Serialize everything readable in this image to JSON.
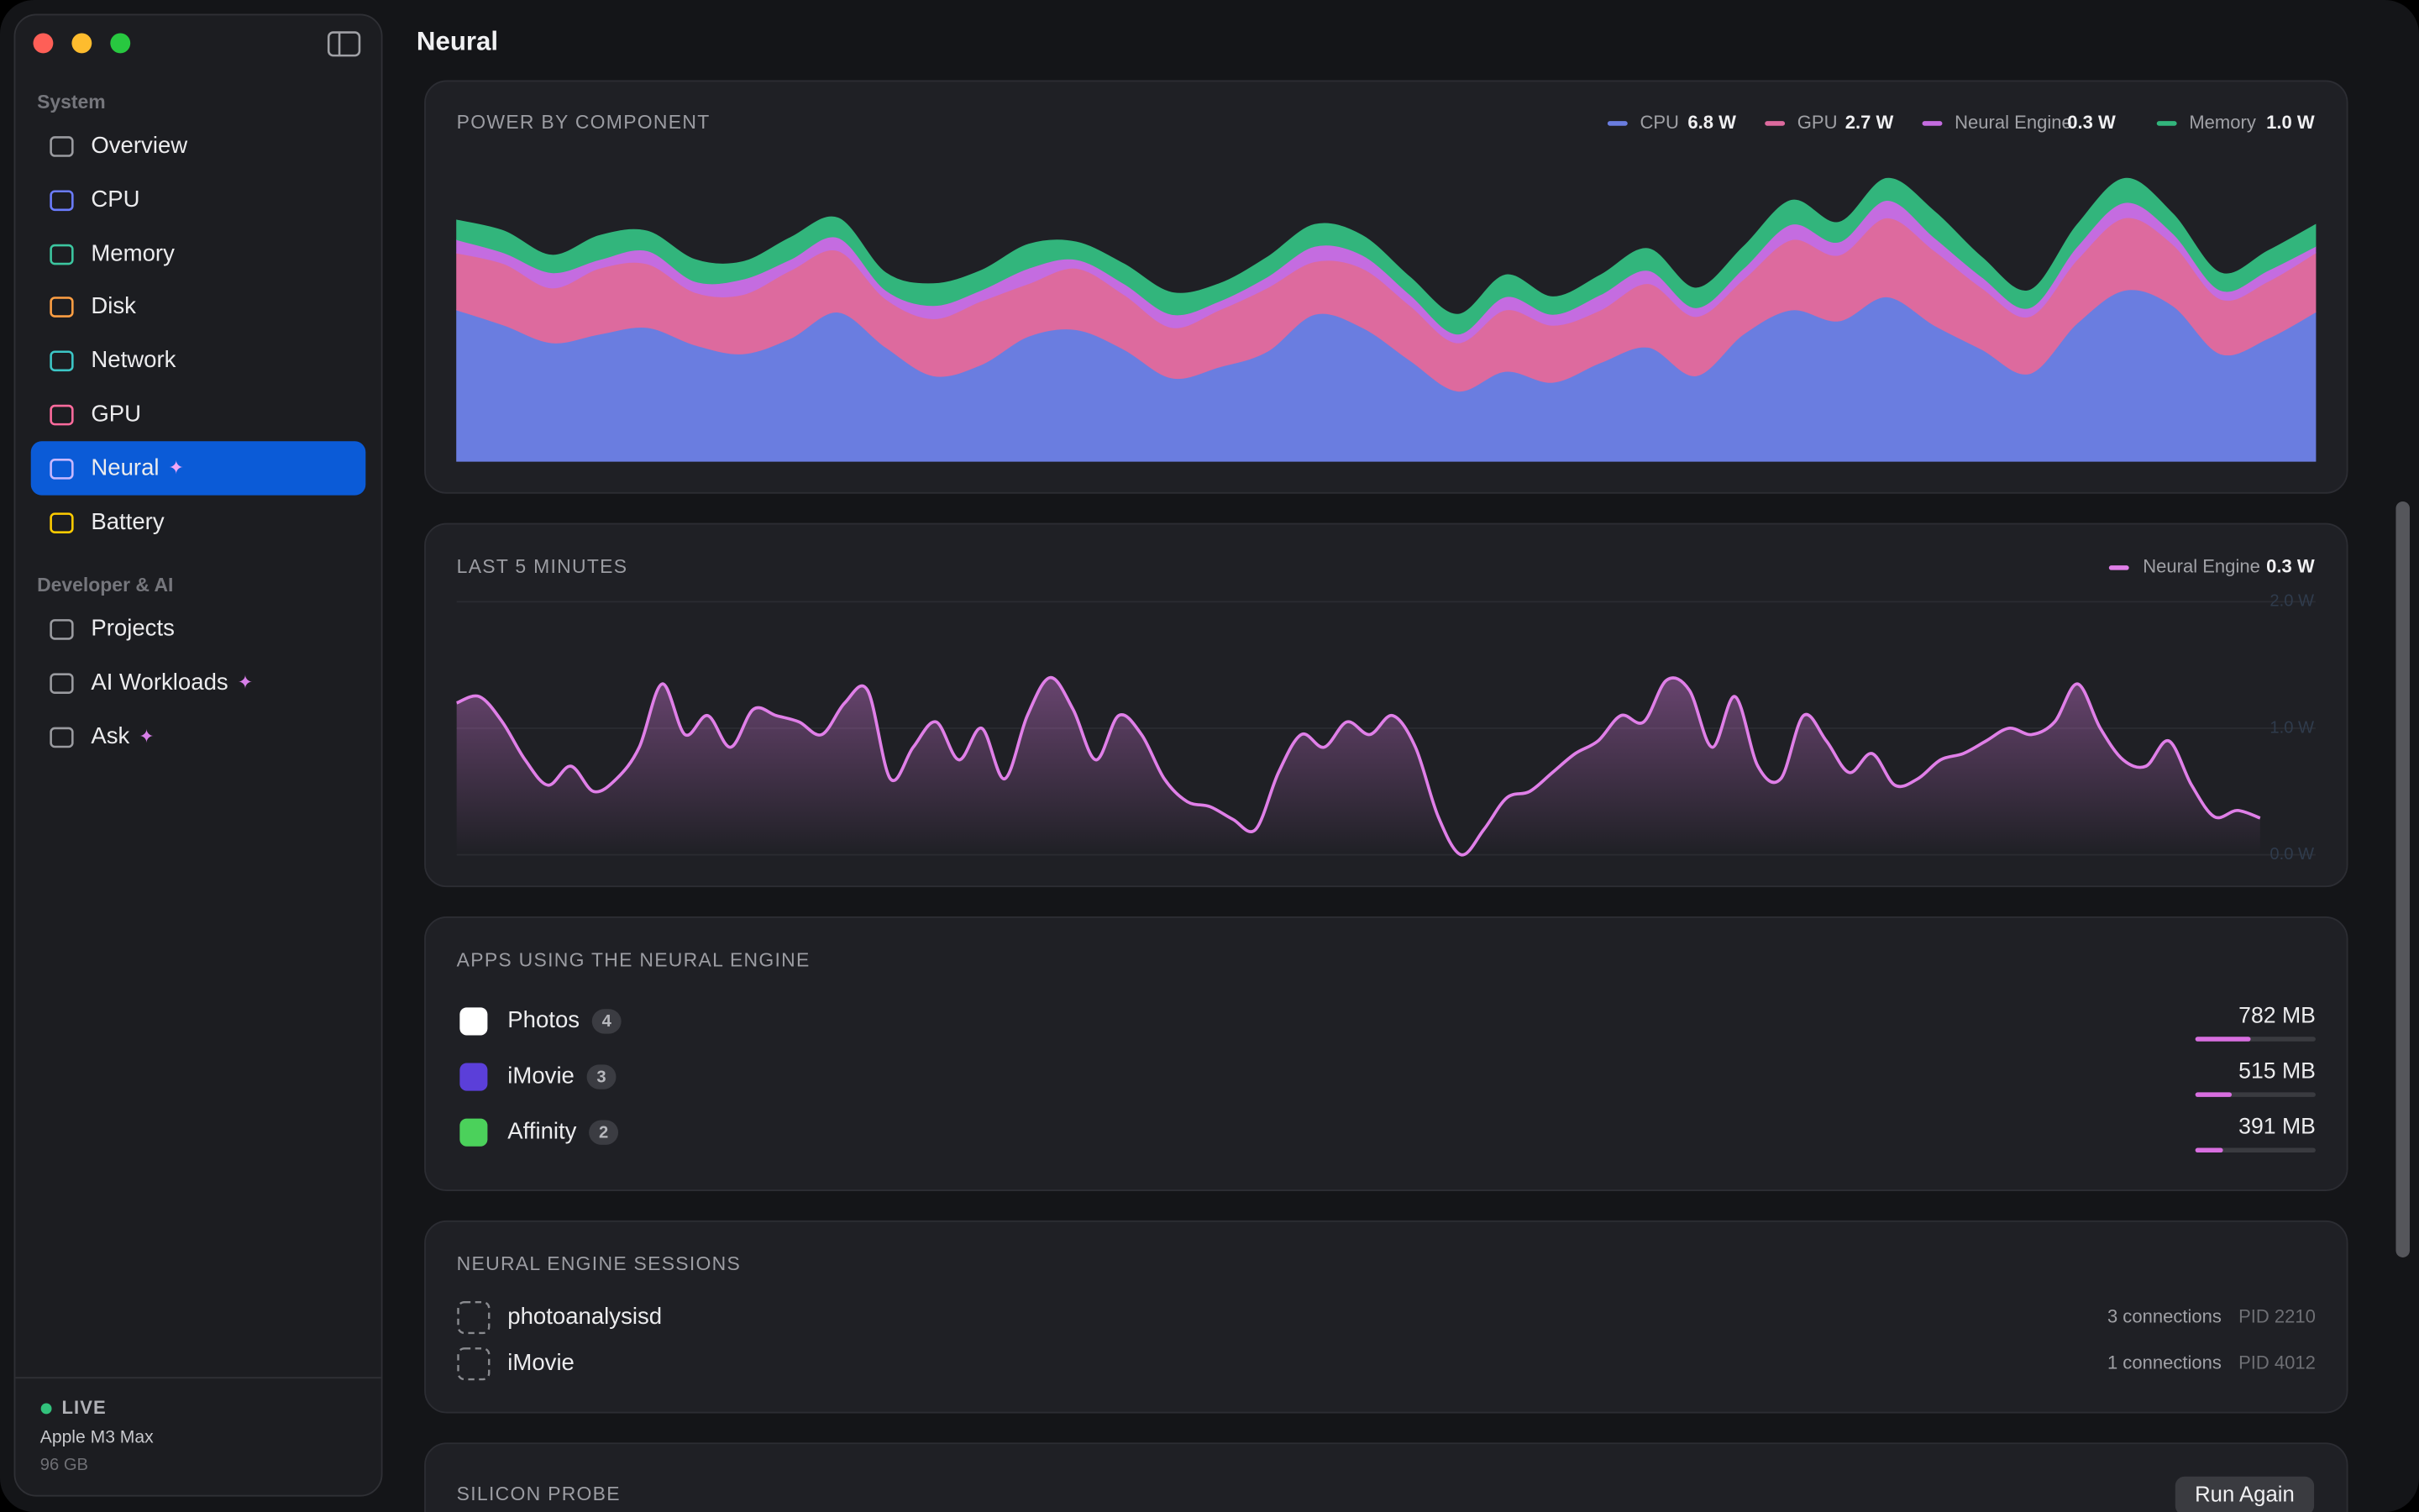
{
  "window": {
    "title": "Neural"
  },
  "sidebar": {
    "sections": [
      {
        "title": "System",
        "items": [
          {
            "label": "Overview"
          },
          {
            "label": "CPU"
          },
          {
            "label": "Memory"
          },
          {
            "label": "Disk"
          },
          {
            "label": "Network"
          },
          {
            "label": "GPU"
          },
          {
            "label": "Neural",
            "active": true
          },
          {
            "label": "Battery"
          }
        ]
      },
      {
        "title": "Developer & AI",
        "items": [
          {
            "label": "Projects"
          },
          {
            "label": "AI Workloads"
          },
          {
            "label": "Ask"
          }
        ]
      }
    ],
    "footer": {
      "status": "LIVE",
      "device": "Apple M3 Max",
      "memory": "96 GB"
    }
  },
  "power_chart": {
    "chart_data": {
      "type": "area",
      "title": "POWER BY COMPONENT",
      "stacked": true,
      "ylim": [
        0,
        14
      ],
      "series": [
        {
          "name": "CPU",
          "color": "#6a7de0",
          "legend_value": "6.8 W",
          "values": [
            6.9,
            6.2,
            5.4,
            5.8,
            6.1,
            5.3,
            4.9,
            5.6,
            6.8,
            5.2,
            3.9,
            4.4,
            5.7,
            6.0,
            5.1,
            3.8,
            4.3,
            5.0,
            6.7,
            6.1,
            4.6,
            3.2,
            4.1,
            3.6,
            4.5,
            5.2,
            3.9,
            5.8,
            6.9,
            6.4,
            7.5,
            6.2,
            5.1,
            4.0,
            6.3,
            7.8,
            7.1,
            4.9,
            5.6,
            6.8
          ]
        },
        {
          "name": "GPU",
          "color": "#dd6a9e",
          "legend_value": "2.7 W",
          "values": [
            2.6,
            2.8,
            2.5,
            3.0,
            2.9,
            2.4,
            2.7,
            3.1,
            2.8,
            2.2,
            2.6,
            2.9,
            2.4,
            2.8,
            2.5,
            2.3,
            2.6,
            2.9,
            2.4,
            2.7,
            2.5,
            2.2,
            2.8,
            2.6,
            2.4,
            2.9,
            2.7,
            2.5,
            3.2,
            3.0,
            3.6,
            3.4,
            2.8,
            2.6,
            2.9,
            3.3,
            2.8,
            2.5,
            2.6,
            2.7
          ]
        },
        {
          "name": "Neural Engine",
          "color": "#c46ce0",
          "legend_value": "0.3 W",
          "values": [
            0.6,
            0.5,
            0.7,
            0.4,
            0.6,
            0.5,
            0.7,
            0.5,
            0.6,
            0.4,
            0.6,
            0.5,
            0.7,
            0.4,
            0.5,
            0.6,
            0.4,
            0.5,
            0.7,
            0.6,
            0.5,
            0.4,
            0.6,
            0.5,
            0.7,
            0.6,
            0.4,
            0.5,
            0.7,
            0.6,
            0.8,
            0.6,
            0.5,
            0.4,
            0.6,
            0.7,
            0.5,
            0.4,
            0.5,
            0.3
          ]
        },
        {
          "name": "Memory",
          "color": "#32b57c",
          "legend_value": "1.0 W",
          "values": [
            0.9,
            1.0,
            0.8,
            1.1,
            0.9,
            1.0,
            0.8,
            1.0,
            0.9,
            0.8,
            1.0,
            0.9,
            1.1,
            0.8,
            0.9,
            1.0,
            0.8,
            0.9,
            1.0,
            0.9,
            0.8,
            0.9,
            1.0,
            0.8,
            0.9,
            1.0,
            0.9,
            1.0,
            1.1,
            0.9,
            1.0,
            1.2,
            0.9,
            0.8,
            1.0,
            1.1,
            0.9,
            0.8,
            0.9,
            1.0
          ]
        }
      ]
    }
  },
  "recent_chart": {
    "chart_data": {
      "type": "line",
      "title": "LAST 5 MINUTES",
      "ylim": [
        0,
        2
      ],
      "yticks": [
        {
          "value": 0,
          "label": "0.0 W"
        },
        {
          "value": 1,
          "label": "1.0 W"
        },
        {
          "value": 2,
          "label": "2.0 W"
        }
      ],
      "grid": true,
      "series": [
        {
          "name": "Neural Engine",
          "color": "#e07fe8",
          "legend_value": "0.3 W",
          "values": [
            1.2,
            1.25,
            1.05,
            0.75,
            0.55,
            0.7,
            0.5,
            0.6,
            0.85,
            1.35,
            0.95,
            1.1,
            0.85,
            1.15,
            1.1,
            1.05,
            0.95,
            1.2,
            1.3,
            0.6,
            0.85,
            1.05,
            0.75,
            1.0,
            0.6,
            1.1,
            1.4,
            1.15,
            0.75,
            1.1,
            0.95,
            0.6,
            0.42,
            0.38,
            0.28,
            0.2,
            0.65,
            0.95,
            0.85,
            1.05,
            0.95,
            1.1,
            0.85,
            0.3,
            0.0,
            0.2,
            0.45,
            0.5,
            0.65,
            0.8,
            0.9,
            1.1,
            1.05,
            1.38,
            1.3,
            0.85,
            1.25,
            0.7,
            0.6,
            1.1,
            0.9,
            0.65,
            0.8,
            0.55,
            0.6,
            0.75,
            0.8,
            0.9,
            1.0,
            0.95,
            1.05,
            1.35,
            1.0,
            0.75,
            0.7,
            0.9,
            0.55,
            0.3,
            0.35,
            0.29
          ]
        }
      ]
    }
  },
  "apps": {
    "title": "APPS USING THE NEURAL ENGINE",
    "xlim": [
      0,
      1700
    ],
    "rows": [
      {
        "name": "Photos",
        "count": 4,
        "memory": 782,
        "memory_label": "782 MB"
      },
      {
        "name": "iMovie",
        "count": 3,
        "memory": 515,
        "memory_label": "515 MB"
      },
      {
        "name": "Affinity",
        "count": 2,
        "memory": 391,
        "memory_label": "391 MB"
      }
    ]
  },
  "sessions": {
    "title": "NEURAL ENGINE SESSIONS",
    "rows": [
      {
        "name": "photoanalysisd",
        "connections": "3 connections",
        "pid": "PID 2210"
      },
      {
        "name": "iMovie",
        "connections": "1 connections",
        "pid": "PID 4012"
      }
    ]
  },
  "probe": {
    "title": "SILICON PROBE",
    "button": "Run Again"
  }
}
